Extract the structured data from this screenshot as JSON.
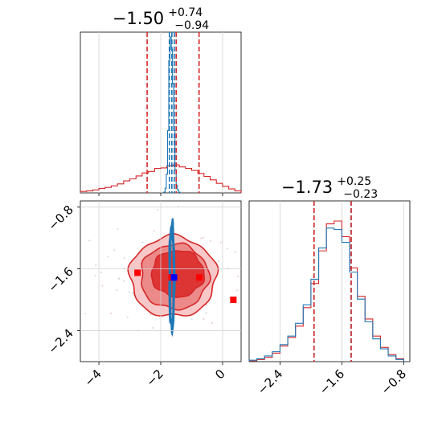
{
  "colors": {
    "red": "#d62728",
    "blue": "#1f77b4",
    "marker_red": "#ff0000",
    "marker_blue": "#0000ff",
    "grid": "#d3d3d3"
  },
  "chart_data": [
    {
      "type": "histogram",
      "panel": "top-left marginal (parameter 1)",
      "title": {
        "value": "−1.50",
        "plus": "+0.74",
        "minus": "−0.94"
      },
      "xlim": [
        -4.6,
        0.6
      ],
      "grid": true,
      "series": [
        {
          "color": "red",
          "quantiles": [
            -2.44,
            -1.5,
            -0.76
          ],
          "bins_x": [
            -4.6,
            -4.4,
            -4.2,
            -4.0,
            -3.8,
            -3.6,
            -3.4,
            -3.2,
            -3.0,
            -2.8,
            -2.6,
            -2.4,
            -2.2,
            -2.0,
            -1.8,
            -1.6,
            -1.4,
            -1.2,
            -1.0,
            -0.8,
            -0.6,
            -0.4,
            -0.2,
            0.0,
            0.2,
            0.4,
            0.6
          ],
          "counts": [
            0.3,
            0.4,
            0.6,
            0.9,
            1.1,
            1.4,
            1.8,
            2.4,
            2.8,
            3.4,
            4.0,
            4.3,
            4.9,
            5.0,
            5.4,
            5.6,
            5.2,
            4.9,
            4.5,
            3.9,
            3.3,
            2.6,
            1.9,
            1.3,
            0.8,
            0.4
          ]
        },
        {
          "color": "blue",
          "quantiles": [
            -1.72,
            -1.64,
            -1.56
          ],
          "bins_x": [
            -1.9,
            -1.86,
            -1.82,
            -1.78,
            -1.74,
            -1.7,
            -1.66,
            -1.62,
            -1.58,
            -1.54,
            -1.5,
            -1.46,
            -1.42,
            -1.38
          ],
          "counts": [
            0.5,
            3,
            12,
            40,
            85,
            100,
            92,
            70,
            40,
            15,
            5,
            2,
            0.5
          ]
        }
      ]
    },
    {
      "type": "histogram",
      "panel": "bottom-right marginal (parameter 2)",
      "title": {
        "value": "−1.73",
        "plus": "+0.25",
        "minus": "−0.23"
      },
      "xlim": [
        -2.8,
        -0.72
      ],
      "xticks": [
        "−2.4",
        "−1.6",
        "−0.8"
      ],
      "xtick_values": [
        -2.4,
        -1.6,
        -0.8
      ],
      "grid": true,
      "series": [
        {
          "color": "red",
          "quantiles": [
            -1.96,
            -1.73,
            -1.48
          ],
          "bins_x": [
            -2.8,
            -2.7,
            -2.6,
            -2.5,
            -2.4,
            -2.3,
            -2.2,
            -2.1,
            -2.0,
            -1.9,
            -1.8,
            -1.7,
            -1.6,
            -1.5,
            -1.4,
            -1.3,
            -1.2,
            -1.1,
            -1.0,
            -0.9,
            -0.8
          ],
          "counts": [
            0.5,
            1.5,
            3,
            6,
            11,
            17,
            25,
            38,
            55,
            78,
            97,
            99,
            88,
            66,
            46,
            30,
            18,
            10,
            5,
            2
          ]
        },
        {
          "color": "blue",
          "quantiles": [
            -1.96,
            -1.73,
            -1.48
          ],
          "bins_x": [
            -2.8,
            -2.7,
            -2.6,
            -2.5,
            -2.4,
            -2.3,
            -2.2,
            -2.1,
            -2.0,
            -1.9,
            -1.8,
            -1.7,
            -1.6,
            -1.5,
            -1.4,
            -1.3,
            -1.2,
            -1.1,
            -1.0,
            -0.9,
            -0.8
          ],
          "counts": [
            1,
            2,
            4,
            7,
            12,
            18,
            27,
            40,
            58,
            80,
            94,
            93,
            84,
            63,
            44,
            28,
            16,
            9,
            4,
            1.5
          ]
        }
      ]
    },
    {
      "type": "contour",
      "panel": "bottom-left 2D posterior",
      "xlim": [
        -4.6,
        0.6
      ],
      "ylim": [
        -2.8,
        -0.72
      ],
      "xticks": [
        "−4",
        "−2",
        "0"
      ],
      "xtick_values": [
        -4,
        -2,
        0
      ],
      "yticks": [
        "−0.8",
        "−1.6",
        "−2.4"
      ],
      "ytick_values": [
        -0.8,
        -1.6,
        -2.4
      ],
      "grid": true,
      "crosshair": {
        "x": -1.6,
        "y": -1.68
      },
      "red_contours": [
        {
          "level": "outer",
          "cx": -1.6,
          "cy": -1.7,
          "rx": 1.4,
          "ry": 0.52
        },
        {
          "level": "middle",
          "cx": -1.55,
          "cy": -1.7,
          "rx": 1.1,
          "ry": 0.42
        },
        {
          "level": "inner",
          "cx": -1.45,
          "cy": -1.66,
          "rx": 0.85,
          "ry": 0.3
        }
      ],
      "blue_contours": [
        {
          "cx": -1.64,
          "cy": -1.7,
          "rx": 0.05,
          "ry": 0.62
        },
        {
          "cx": -1.64,
          "cy": -1.7,
          "rx": 0.09,
          "ry": 0.7
        }
      ],
      "red_markers": [
        {
          "x": -2.75,
          "y": -1.65
        },
        {
          "x": -1.65,
          "y": -1.71
        },
        {
          "x": -0.75,
          "y": -1.71
        },
        {
          "x": 0.35,
          "y": -2.0
        }
      ],
      "blue_markers": [
        {
          "x": -1.57,
          "y": -1.71
        }
      ]
    }
  ]
}
